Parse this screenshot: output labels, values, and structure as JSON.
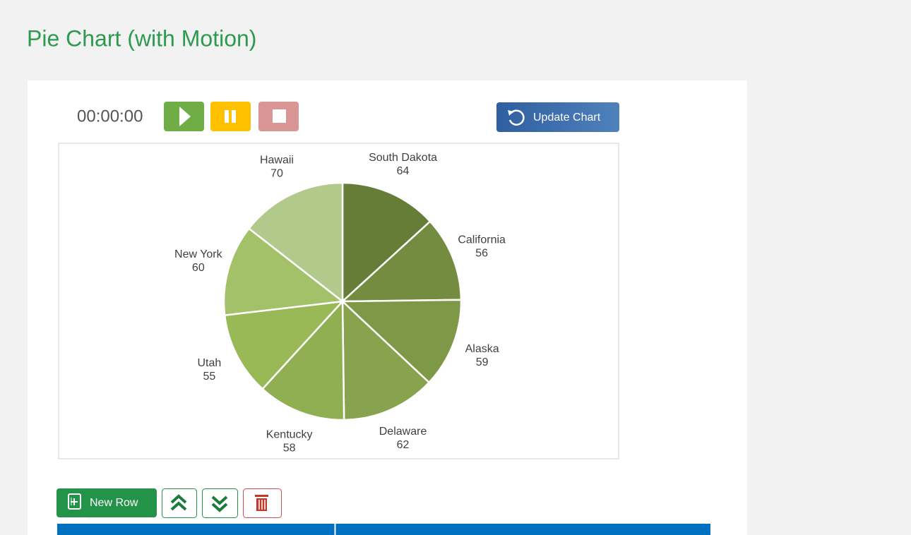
{
  "title": "Pie Chart (with Motion)",
  "timer": "00:00:00",
  "buttons": {
    "update": "Update Chart",
    "new_row": "New Row"
  },
  "chart_data": {
    "type": "pie",
    "categories": [
      "South Dakota",
      "California",
      "Alaska",
      "Delaware",
      "Kentucky",
      "Utah",
      "New York",
      "Hawaii"
    ],
    "values": [
      64,
      56,
      59,
      62,
      58,
      55,
      60,
      70
    ],
    "colors": [
      "#667d38",
      "#738c3f",
      "#7d9846",
      "#87a34d",
      "#90ae52",
      "#99b957",
      "#a3c168",
      "#b1c98a"
    ]
  }
}
